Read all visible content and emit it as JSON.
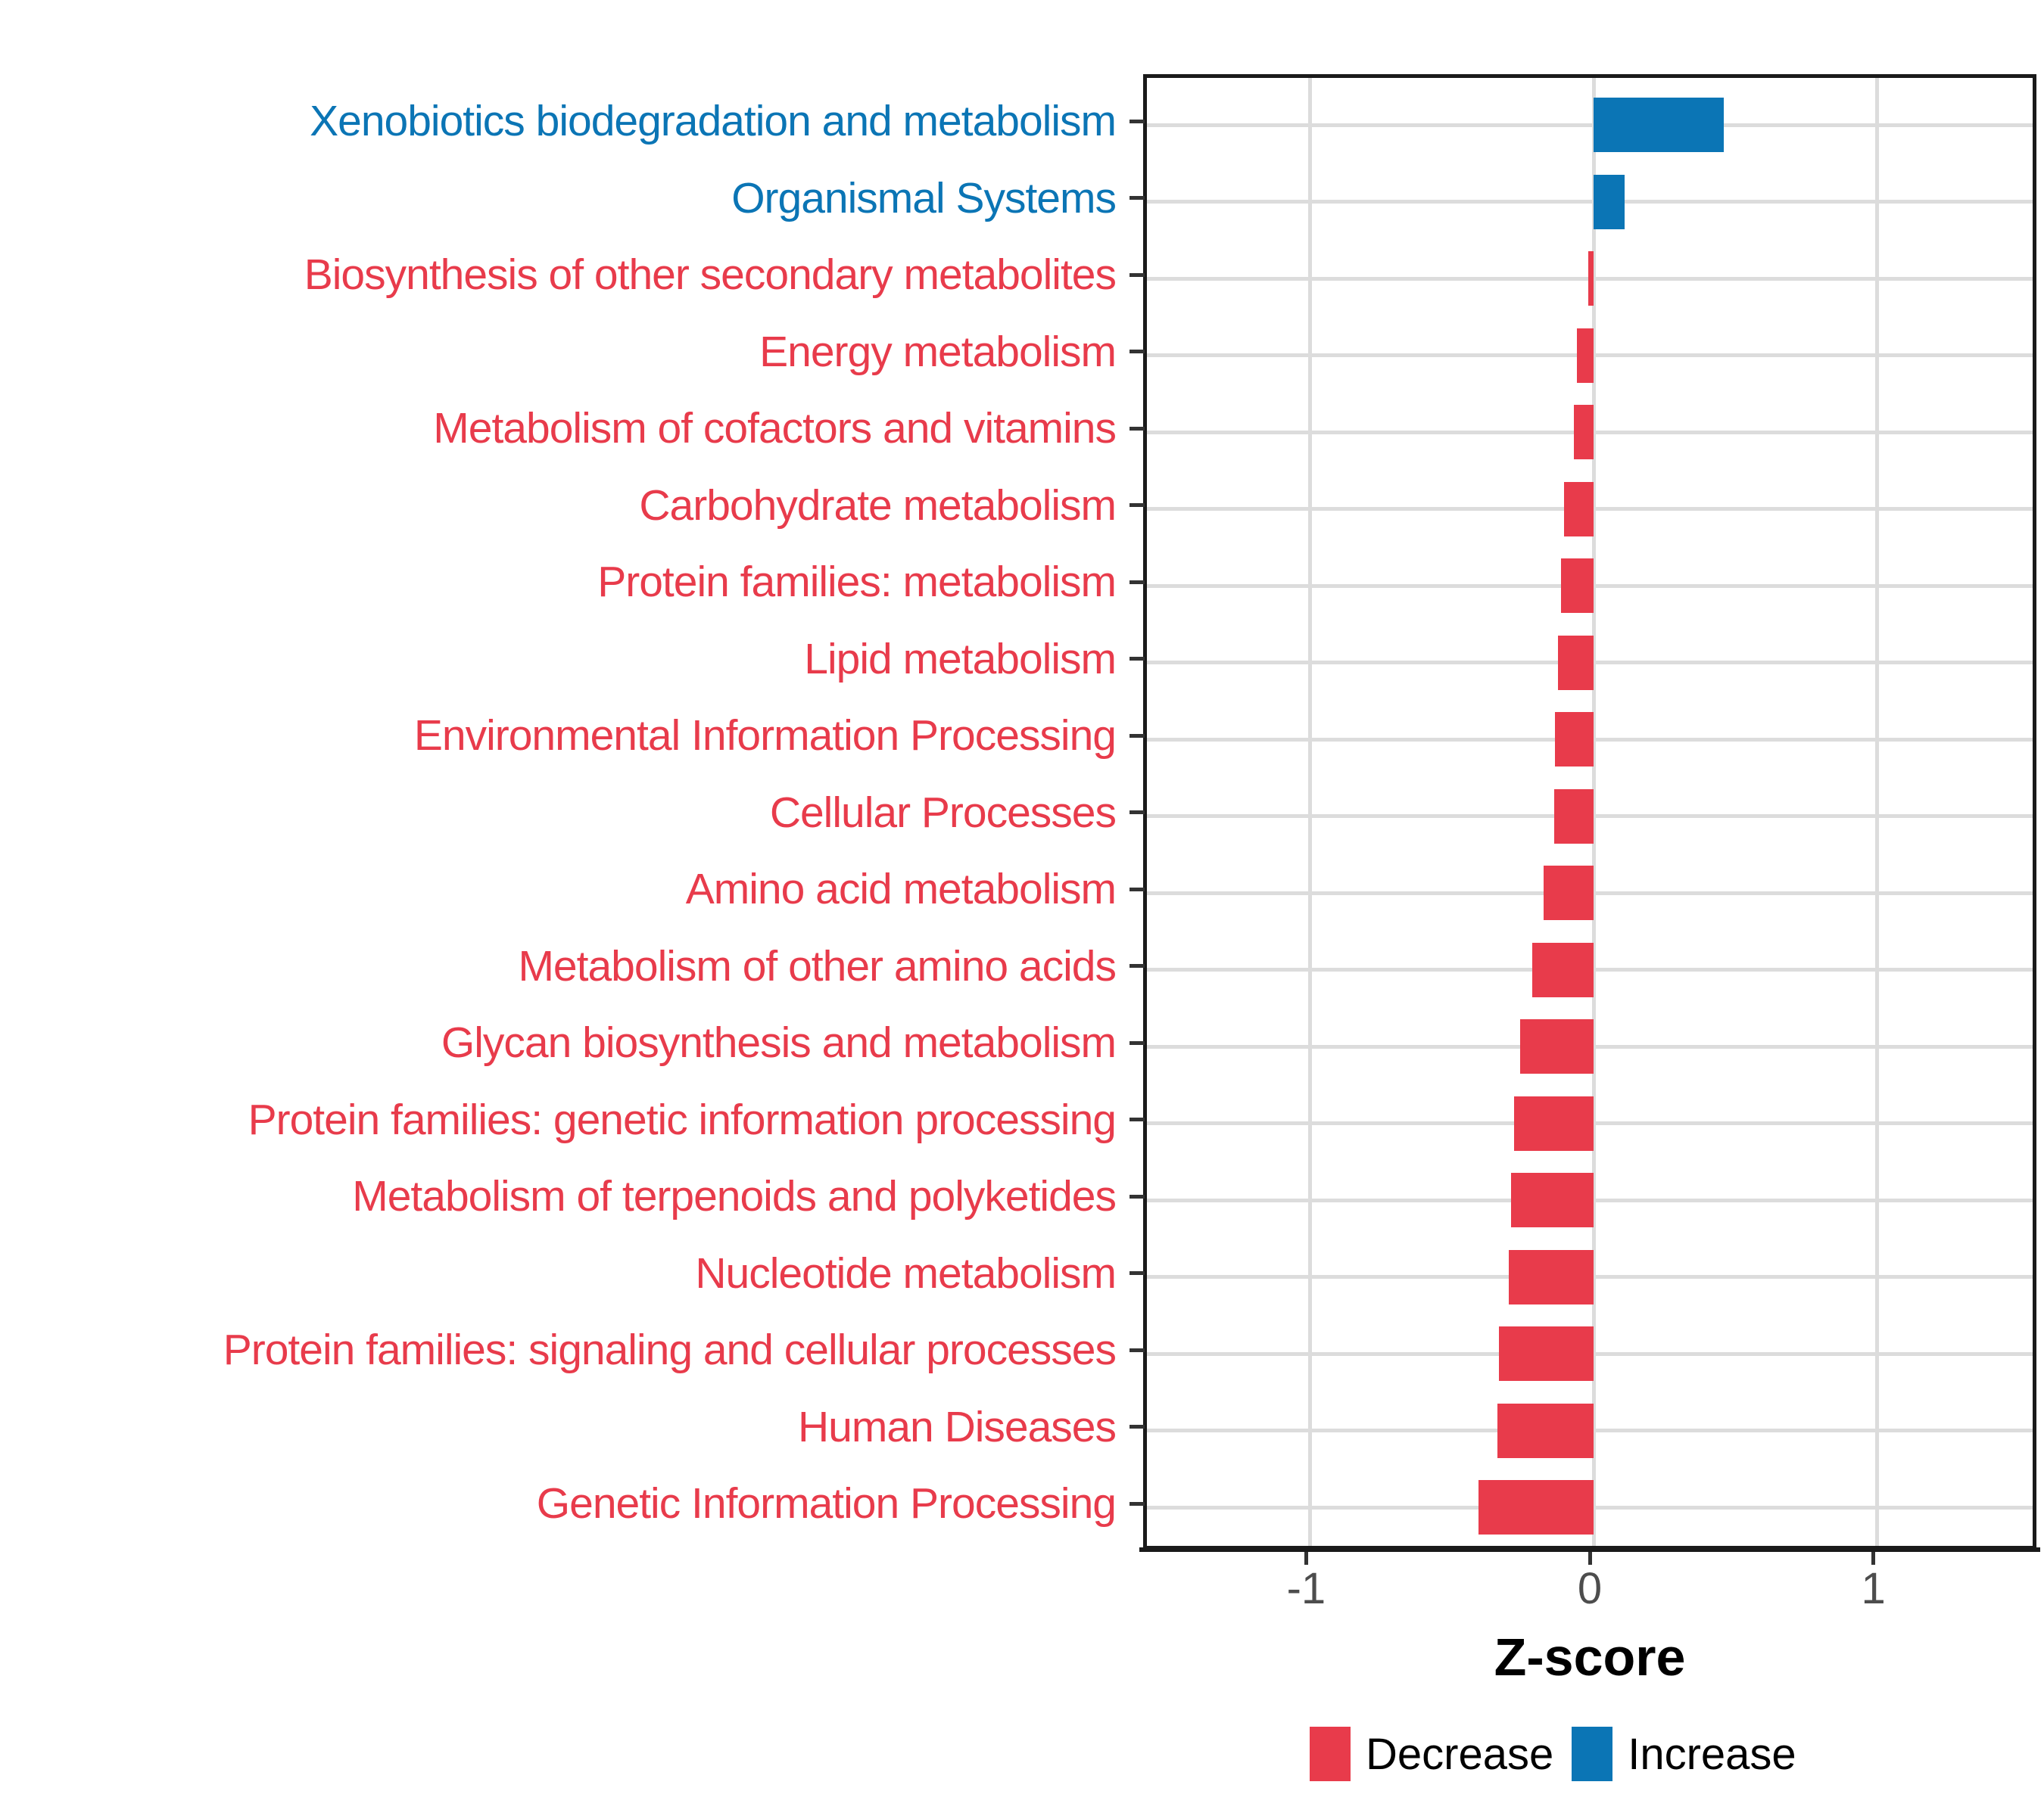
{
  "chart_data": {
    "type": "bar",
    "orientation": "horizontal",
    "title": "",
    "xlabel": "Z-score",
    "x_tick_labels": [
      "-1",
      "0",
      "1"
    ],
    "x_tick_values": [
      -1,
      0,
      1
    ],
    "xlim": [
      -1.575,
      1.575
    ],
    "grid": true,
    "legend_position": "bottom",
    "categories": [
      "Xenobiotics biodegradation and metabolism",
      "Organismal Systems",
      "Biosynthesis of other secondary metabolites",
      "Energy metabolism",
      "Metabolism of cofactors and vitamins",
      "Carbohydrate metabolism",
      "Protein families: metabolism",
      "Lipid metabolism",
      "Environmental Information Processing",
      "Cellular Processes",
      "Amino acid metabolism",
      "Metabolism of other amino acids",
      "Glycan biosynthesis and metabolism",
      "Protein families: genetic information processing",
      "Metabolism of terpenoids and polyketides",
      "Nucleotide metabolism",
      "Protein families: signaling and cellular processes",
      "Human Diseases",
      "Genetic Information Processing"
    ],
    "values": [
      0.46,
      0.11,
      -0.02,
      -0.06,
      -0.07,
      -0.105,
      -0.115,
      -0.125,
      -0.135,
      -0.14,
      -0.175,
      -0.215,
      -0.26,
      -0.28,
      -0.29,
      -0.3,
      -0.335,
      -0.34,
      -0.405
    ],
    "groups": [
      "Increase",
      "Increase",
      "Decrease",
      "Decrease",
      "Decrease",
      "Decrease",
      "Decrease",
      "Decrease",
      "Decrease",
      "Decrease",
      "Decrease",
      "Decrease",
      "Decrease",
      "Decrease",
      "Decrease",
      "Decrease",
      "Decrease",
      "Decrease",
      "Decrease"
    ],
    "colors": {
      "Decrease": "#E83B4B",
      "Increase": "#0B75B5"
    },
    "legend": [
      {
        "label": "Decrease",
        "color": "#E83B4B"
      },
      {
        "label": "Increase",
        "color": "#0B75B5"
      }
    ]
  }
}
